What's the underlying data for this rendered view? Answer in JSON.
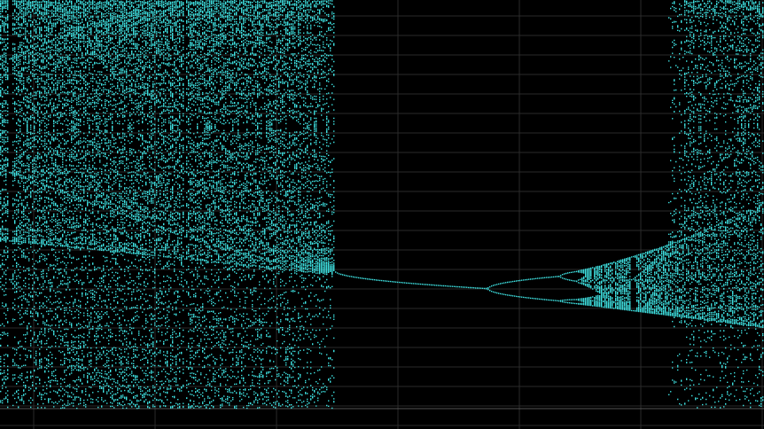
{
  "view": {
    "color": "#3fe3e3",
    "grid": true
  }
}
